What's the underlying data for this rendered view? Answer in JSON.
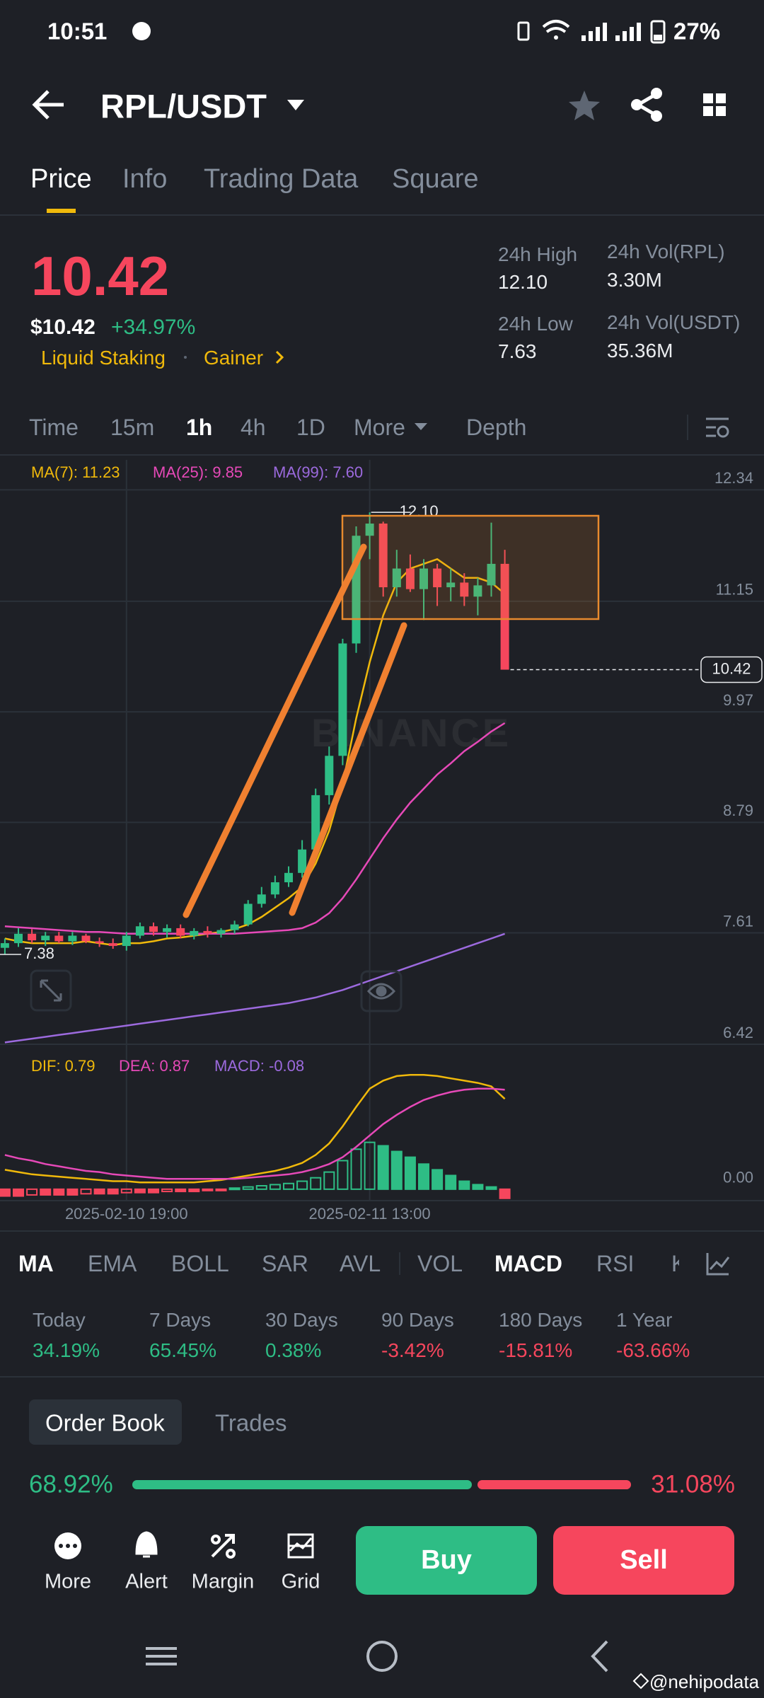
{
  "status_bar": {
    "time": "10:51",
    "battery": "27%"
  },
  "header": {
    "pair": "RPL/USDT"
  },
  "tabs": [
    "Price",
    "Info",
    "Trading Data",
    "Square"
  ],
  "ticker": {
    "price": "10.42",
    "price_usd": "$10.42",
    "change": "+34.97%",
    "tags": [
      "Liquid Staking",
      "Gainer"
    ],
    "stats": [
      {
        "label": "24h High",
        "value": "12.10"
      },
      {
        "label": "24h Vol(RPL)",
        "value": "3.30M"
      },
      {
        "label": "24h Low",
        "value": "7.63"
      },
      {
        "label": "24h Vol(USDT)",
        "value": "35.36M"
      }
    ]
  },
  "intervals": [
    "Time",
    "15m",
    "1h",
    "4h",
    "1D",
    "More",
    "Depth"
  ],
  "chart_data": [
    {
      "type": "candlestick",
      "watermark": "BINANCE",
      "up_color": "#2ebd85",
      "down_color": "#f6465d",
      "legend": [
        {
          "text": "MA(7): 11.23",
          "color": "#f0b90b"
        },
        {
          "text": "MA(25): 9.85",
          "color": "#e649b8"
        },
        {
          "text": "MA(99): 7.60",
          "color": "#9c6ade"
        }
      ],
      "categories": [
        null,
        null,
        null,
        null,
        null,
        null,
        null,
        null,
        null,
        "2025-02-10 19:00",
        null,
        null,
        null,
        null,
        null,
        null,
        null,
        null,
        null,
        null,
        null,
        null,
        null,
        null,
        null,
        null,
        null,
        "2025-02-11 13:00",
        null,
        null,
        null,
        null,
        null,
        null,
        null,
        null,
        null,
        null
      ],
      "open": [
        7.45,
        7.5,
        7.6,
        7.53,
        7.58,
        7.52,
        7.58,
        7.52,
        7.5,
        7.47,
        7.58,
        7.68,
        7.62,
        7.66,
        7.58,
        7.63,
        7.6,
        7.64,
        7.7,
        7.92,
        8.02,
        8.15,
        8.25,
        8.5,
        9.08,
        9.5,
        10.7,
        11.85,
        11.98,
        11.3,
        11.5,
        11.28,
        11.5,
        11.3,
        11.35,
        11.2,
        11.32,
        11.55
      ],
      "high": [
        7.55,
        7.66,
        7.65,
        7.62,
        7.62,
        7.62,
        7.6,
        7.56,
        7.55,
        7.62,
        7.72,
        7.72,
        7.7,
        7.7,
        7.66,
        7.68,
        7.66,
        7.74,
        7.96,
        8.1,
        8.22,
        8.32,
        8.6,
        9.15,
        9.6,
        10.75,
        11.95,
        12.1,
        12.0,
        11.7,
        11.65,
        11.6,
        11.55,
        11.5,
        11.45,
        11.4,
        11.99,
        11.7
      ],
      "low": [
        7.38,
        7.46,
        7.5,
        7.47,
        7.5,
        7.48,
        7.5,
        7.46,
        7.44,
        7.42,
        7.55,
        7.58,
        7.56,
        7.55,
        7.54,
        7.56,
        7.56,
        7.6,
        7.68,
        7.88,
        7.98,
        8.1,
        8.2,
        8.45,
        8.98,
        9.4,
        10.6,
        11.6,
        11.2,
        11.2,
        11.25,
        10.95,
        11.1,
        11.15,
        11.1,
        11.0,
        11.2,
        10.42
      ],
      "close": [
        7.5,
        7.6,
        7.53,
        7.58,
        7.52,
        7.58,
        7.52,
        7.5,
        7.47,
        7.58,
        7.68,
        7.62,
        7.66,
        7.58,
        7.63,
        7.6,
        7.64,
        7.7,
        7.92,
        8.02,
        8.15,
        8.25,
        8.5,
        9.08,
        9.5,
        10.7,
        11.85,
        11.98,
        11.3,
        11.5,
        11.28,
        11.5,
        11.3,
        11.35,
        11.2,
        11.32,
        11.55,
        10.42
      ],
      "series": [
        {
          "name": "MA(7)",
          "color": "#f0b90b",
          "values": [
            7.55,
            7.52,
            7.5,
            7.5,
            7.5,
            7.5,
            7.52,
            7.5,
            7.48,
            7.5,
            7.5,
            7.52,
            7.55,
            7.56,
            7.58,
            7.6,
            7.62,
            7.65,
            7.7,
            7.78,
            7.88,
            7.98,
            8.1,
            8.35,
            8.7,
            9.2,
            9.9,
            10.5,
            11.0,
            11.35,
            11.5,
            11.55,
            11.6,
            11.5,
            11.4,
            11.4,
            11.35,
            11.23
          ]
        },
        {
          "name": "MA(25)",
          "color": "#e649b8",
          "values": [
            7.68,
            7.67,
            7.66,
            7.65,
            7.64,
            7.63,
            7.62,
            7.62,
            7.61,
            7.6,
            7.6,
            7.6,
            7.6,
            7.6,
            7.6,
            7.6,
            7.6,
            7.6,
            7.61,
            7.62,
            7.63,
            7.64,
            7.66,
            7.72,
            7.82,
            7.98,
            8.18,
            8.4,
            8.62,
            8.82,
            9.0,
            9.15,
            9.3,
            9.42,
            9.55,
            9.65,
            9.76,
            9.85
          ]
        },
        {
          "name": "MA(99)",
          "color": "#9c6ade",
          "values": [
            6.44,
            6.46,
            6.48,
            6.5,
            6.52,
            6.54,
            6.56,
            6.58,
            6.6,
            6.62,
            6.64,
            6.66,
            6.68,
            6.7,
            6.72,
            6.74,
            6.76,
            6.78,
            6.8,
            6.82,
            6.84,
            6.86,
            6.89,
            6.92,
            6.96,
            7.0,
            7.05,
            7.1,
            7.15,
            7.2,
            7.25,
            7.3,
            7.35,
            7.4,
            7.45,
            7.5,
            7.55,
            7.6
          ]
        }
      ],
      "max_label": {
        "value": 12.1,
        "label": "12.10"
      },
      "min_label": 7.38,
      "last_price": 10.42,
      "ylim": [
        6.36,
        12.66
      ],
      "yticks": [
        12.34,
        11.15,
        9.97,
        8.79,
        7.61,
        6.42
      ],
      "grid": true
    },
    {
      "type": "macd",
      "legend": [
        {
          "text": "DIF: 0.79",
          "color": "#f0b90b"
        },
        {
          "text": "DEA: 0.87",
          "color": "#e649b8"
        },
        {
          "text": "MACD: -0.08",
          "color": "#9c6ade"
        }
      ],
      "series": [
        {
          "name": "DIF",
          "color": "#f0b90b",
          "values": [
            0.17,
            0.15,
            0.13,
            0.12,
            0.11,
            0.1,
            0.09,
            0.08,
            0.07,
            0.07,
            0.06,
            0.06,
            0.06,
            0.06,
            0.06,
            0.07,
            0.08,
            0.1,
            0.12,
            0.14,
            0.16,
            0.19,
            0.23,
            0.3,
            0.4,
            0.55,
            0.72,
            0.88,
            0.95,
            0.99,
            1.0,
            1.0,
            0.99,
            0.97,
            0.95,
            0.93,
            0.9,
            0.79
          ]
        },
        {
          "name": "DEA",
          "color": "#e649b8",
          "values": [
            0.3,
            0.27,
            0.25,
            0.22,
            0.2,
            0.18,
            0.16,
            0.15,
            0.13,
            0.12,
            0.11,
            0.1,
            0.09,
            0.09,
            0.09,
            0.09,
            0.09,
            0.09,
            0.1,
            0.11,
            0.12,
            0.13,
            0.15,
            0.18,
            0.22,
            0.28,
            0.37,
            0.47,
            0.57,
            0.65,
            0.72,
            0.78,
            0.82,
            0.85,
            0.87,
            0.88,
            0.88,
            0.87
          ]
        }
      ],
      "histogram": [
        -0.06,
        -0.06,
        -0.05,
        -0.05,
        -0.05,
        -0.05,
        -0.04,
        -0.04,
        -0.04,
        -0.03,
        -0.03,
        -0.03,
        -0.02,
        -0.02,
        -0.02,
        -0.01,
        -0.01,
        0.01,
        0.02,
        0.03,
        0.04,
        0.05,
        0.07,
        0.1,
        0.15,
        0.25,
        0.35,
        0.41,
        0.38,
        0.33,
        0.28,
        0.22,
        0.17,
        0.12,
        0.07,
        0.04,
        0.02,
        -0.08
      ],
      "up_color": "#2ebd85",
      "down_color": "#f6465d",
      "ylim": [
        -0.1,
        1.2
      ],
      "yticks": [
        {
          "value": 0,
          "label": "0.00"
        }
      ]
    }
  ],
  "indicators": [
    "MA",
    "EMA",
    "BOLL",
    "SAR",
    "AVL",
    "VOL",
    "MACD",
    "RSI",
    "KDJ"
  ],
  "performance": [
    {
      "period": "Today",
      "change": "34.19%"
    },
    {
      "period": "7 Days",
      "change": "65.45%"
    },
    {
      "period": "30 Days",
      "change": "0.38%"
    },
    {
      "period": "90 Days",
      "change": "-3.42%"
    },
    {
      "period": "180 Days",
      "change": "-15.81%"
    },
    {
      "period": "1 Year",
      "change": "-63.66%"
    }
  ],
  "order_book": {
    "tabs": [
      "Order Book",
      "Trades"
    ],
    "buy": {
      "value": 68.92,
      "label": "68.92%"
    },
    "sell": {
      "value": 31.08,
      "label": "31.08%"
    }
  },
  "actions": [
    "More",
    "Alert",
    "Margin",
    "Grid"
  ],
  "buttons": [
    "Buy",
    "Sell"
  ],
  "watermark": "@nehipodata"
}
